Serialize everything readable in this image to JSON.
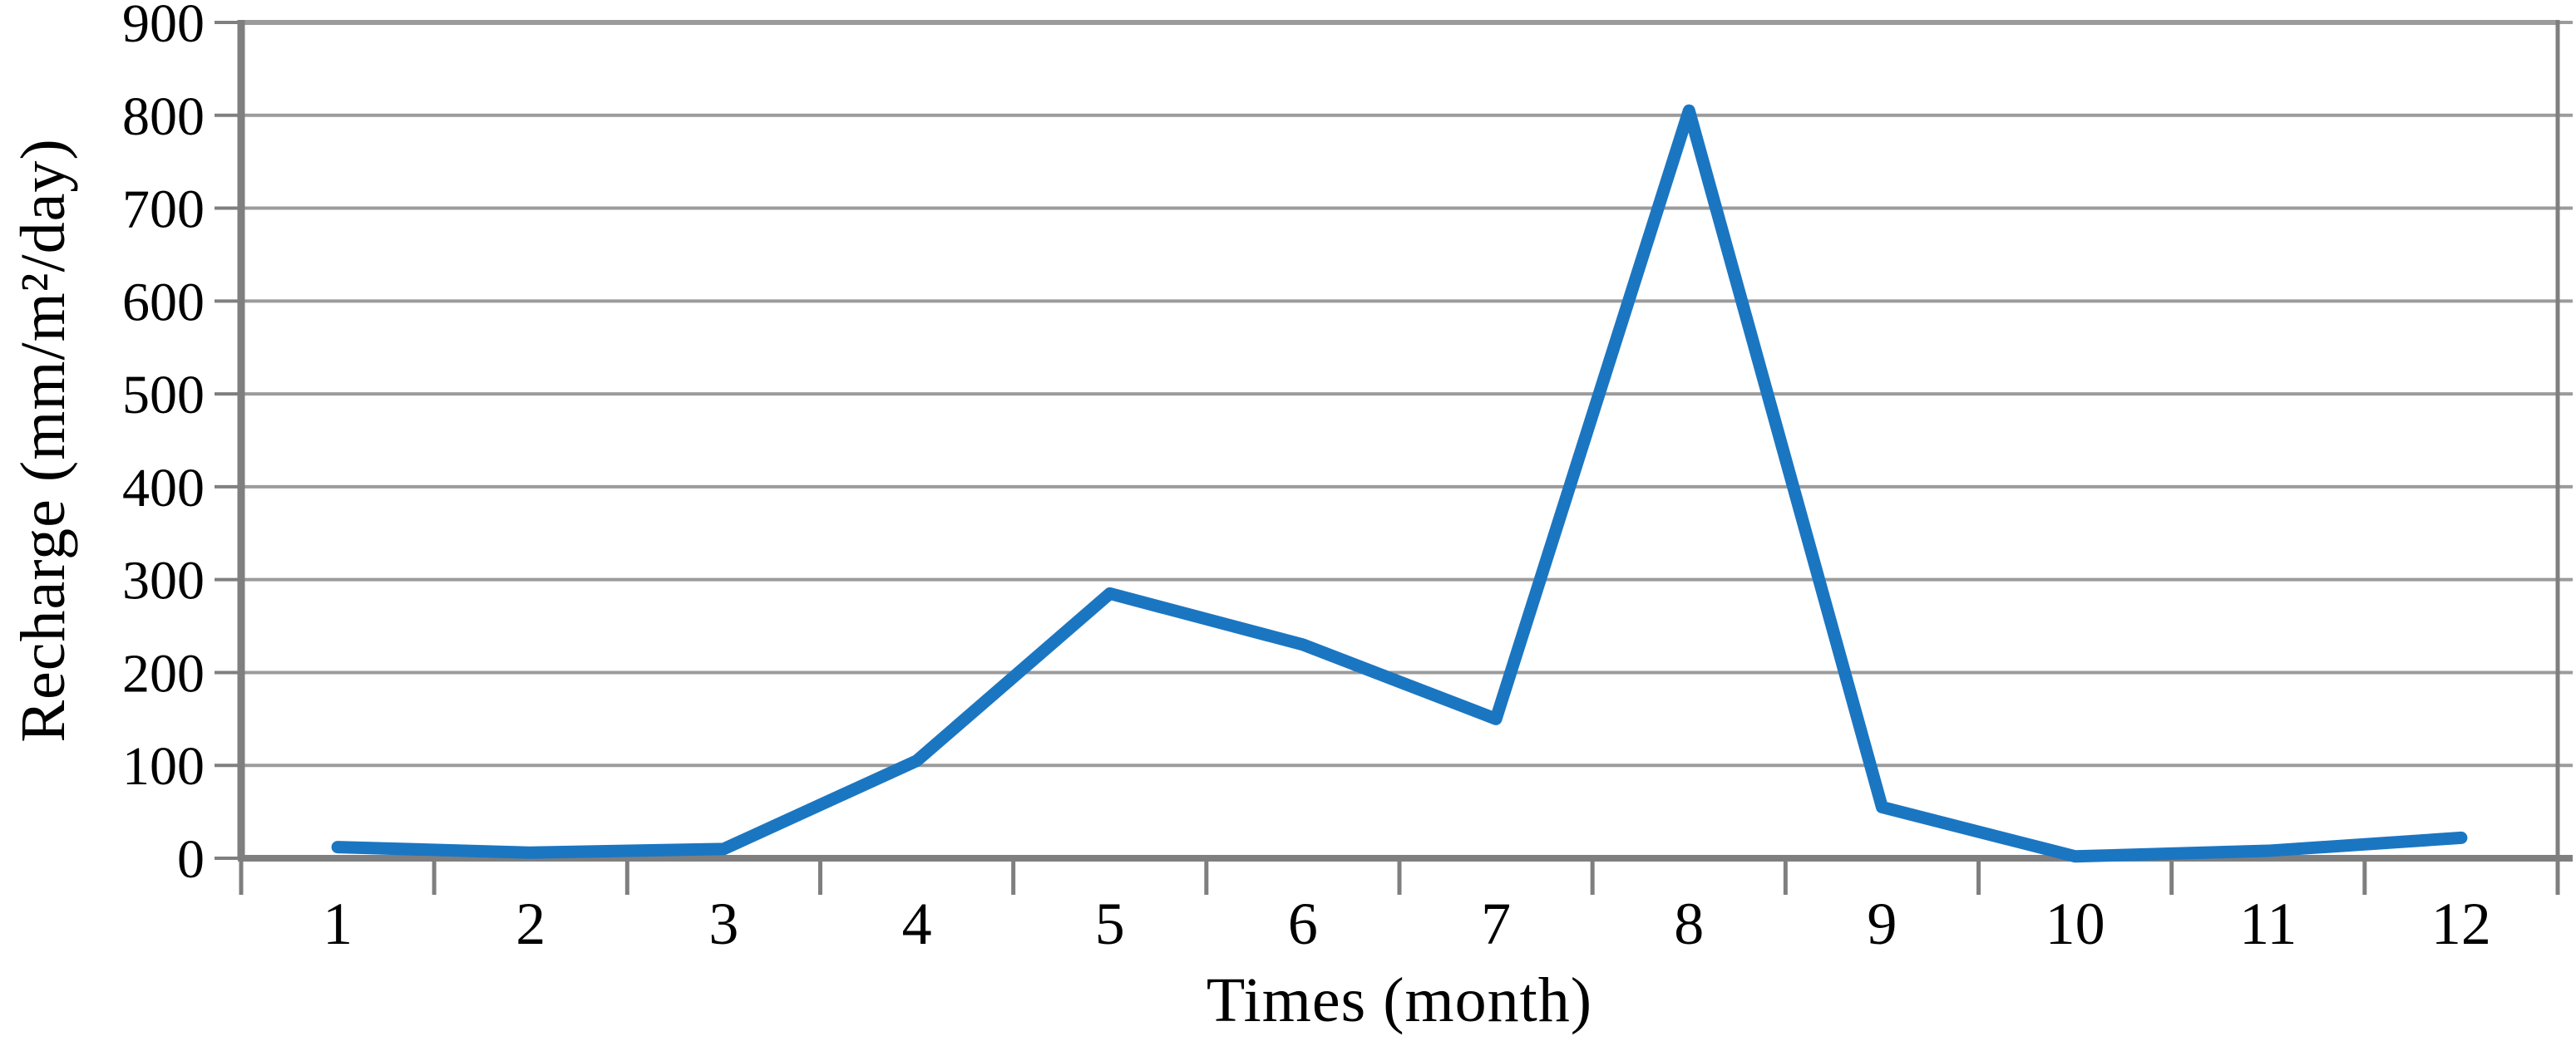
{
  "chart_data": {
    "type": "line",
    "title": "",
    "xlabel": "Times (month)",
    "ylabel": "Recharge (mm/m²/day)",
    "categories": [
      "1",
      "2",
      "3",
      "4",
      "5",
      "6",
      "7",
      "8",
      "9",
      "10",
      "11",
      "12"
    ],
    "series": [
      {
        "name": "Recharge",
        "values": [
          12,
          6,
          10,
          105,
          285,
          230,
          150,
          805,
          55,
          2,
          8,
          22
        ]
      }
    ],
    "ylim": [
      0,
      900
    ],
    "y_ticks": [
      0,
      100,
      200,
      300,
      400,
      500,
      600,
      700,
      800,
      900
    ],
    "grid": "horizontal",
    "legend_position": "none",
    "colors": {
      "line": "#1B76C2",
      "gridline": "#9B9B9B",
      "axis": "#7F7F7F",
      "text": "#000000",
      "background": "#FFFFFF"
    }
  }
}
